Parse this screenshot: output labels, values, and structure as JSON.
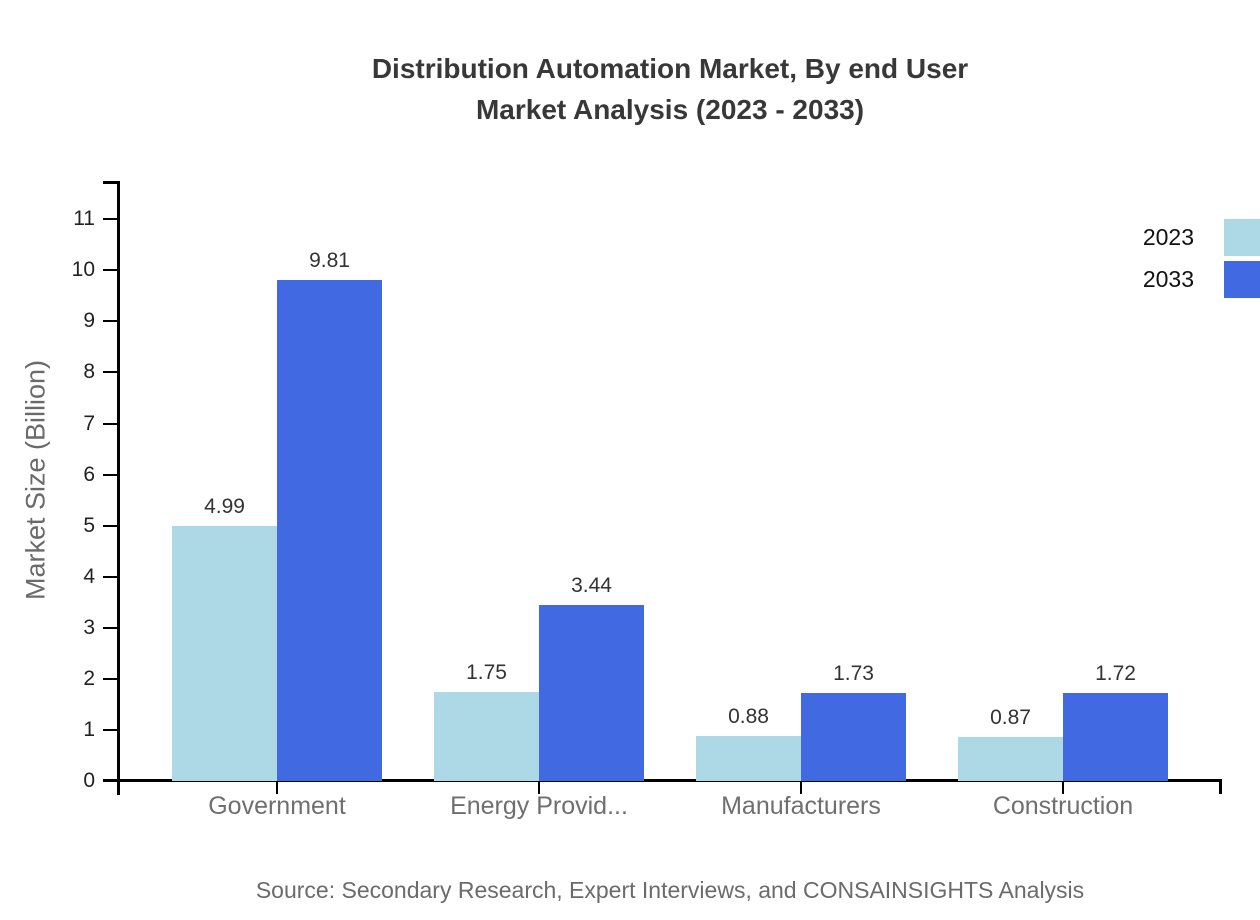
{
  "page": {
    "source_note": "Source: Secondary Research, Expert Interviews, and CONSAINSIGHTS Analysis"
  },
  "chart_data": {
    "type": "bar",
    "title": "Distribution Automation Market, By end User Market Analysis (2023 - 2033)",
    "title_lines": [
      "Distribution Automation Market, By end User",
      "Market Analysis (2023 - 2033)"
    ],
    "categories": [
      "Government",
      "Energy Provid...",
      "Manufacturers",
      "Construction"
    ],
    "series": [
      {
        "name": "2023",
        "color": "#ADD8E6",
        "values": [
          4.99,
          1.75,
          0.88,
          0.87
        ]
      },
      {
        "name": "2033",
        "color": "#4169E1",
        "values": [
          9.81,
          3.44,
          1.73,
          1.72
        ]
      }
    ],
    "xlabel": "",
    "ylabel": "Market Size (Billion)",
    "ylim": [
      0,
      11.75
    ],
    "yticks": [
      0,
      1,
      2,
      3,
      4,
      5,
      6,
      7,
      8,
      9,
      10,
      11
    ],
    "grid": false,
    "legend_position": "top-right",
    "value_labels": true,
    "colors": {
      "axis": "#000000",
      "tick_label": "#222222",
      "value_label": "#333333",
      "category_label": "#6f6f6f"
    }
  }
}
